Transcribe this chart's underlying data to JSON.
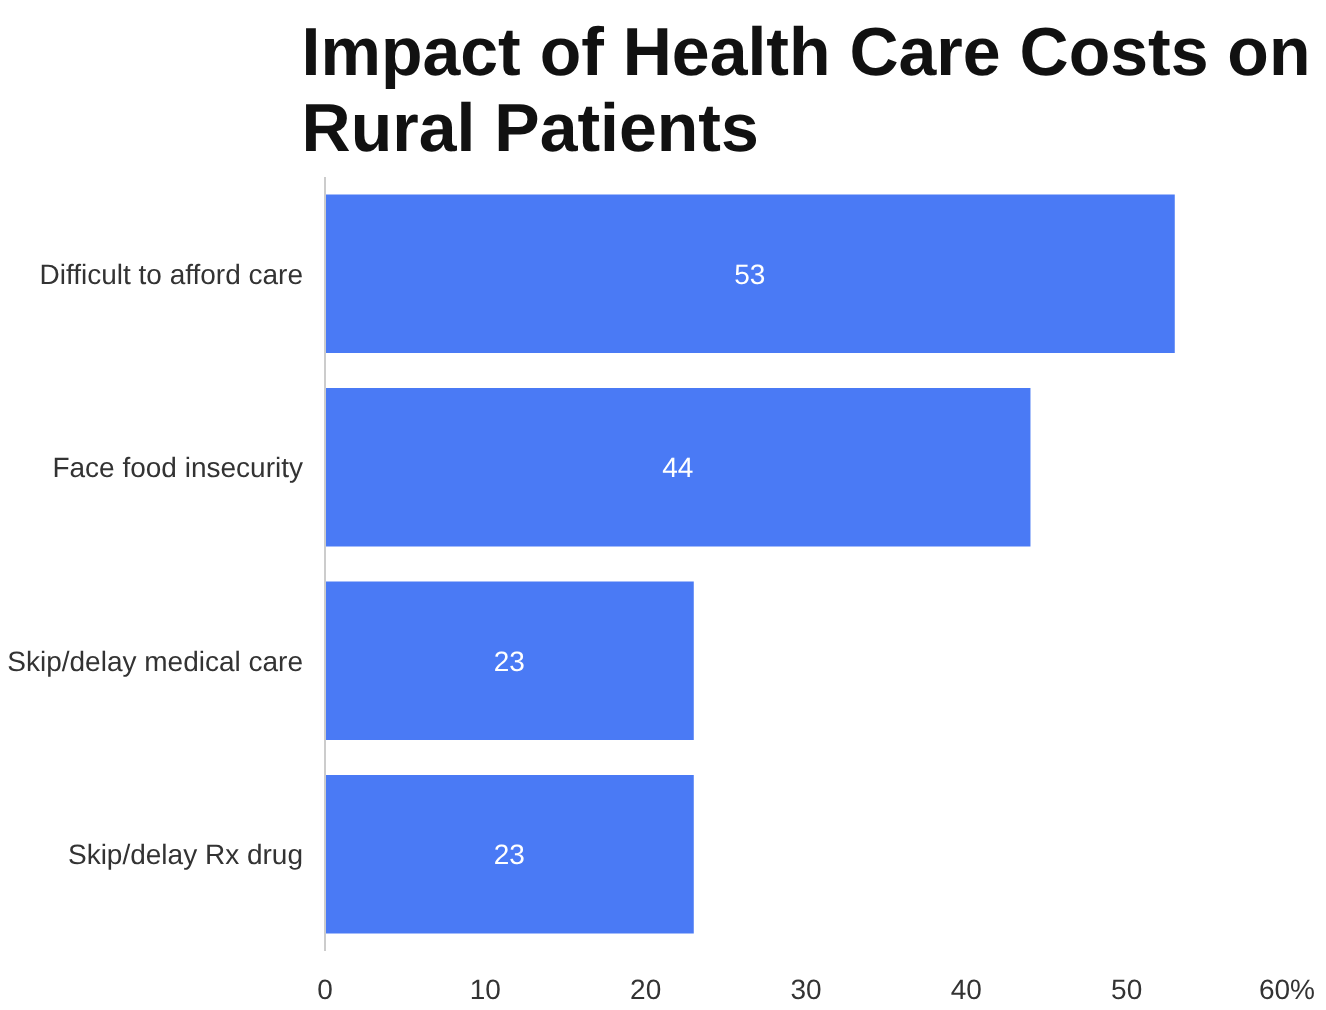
{
  "chart_data": {
    "type": "bar",
    "orientation": "horizontal",
    "title": "Impact of Health Care Costs on Rural Patients",
    "categories": [
      "Difficult to afford care",
      "Face food insecurity",
      "Skip/delay medical care",
      "Skip/delay Rx drug"
    ],
    "values": [
      53,
      44,
      23,
      23
    ],
    "color": "#4a7af5",
    "xlim": [
      0,
      60
    ],
    "xticks": [
      0,
      10,
      20,
      30,
      40,
      50,
      {
        "value": 60,
        "label": "60%"
      }
    ],
    "data_labels": true,
    "grid": false
  }
}
